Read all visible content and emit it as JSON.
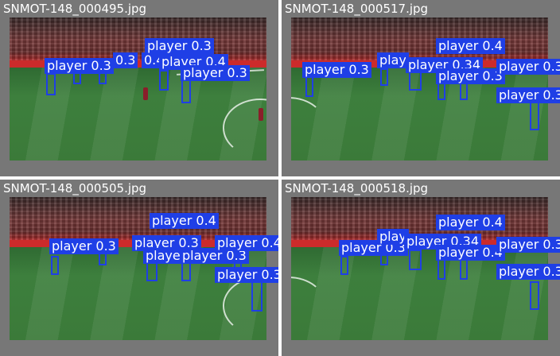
{
  "panels": [
    {
      "title": "SNMOT-148_000495.jpg",
      "labels": [
        "player 0.3",
        "0.3",
        "0.4",
        "player 0.3",
        "player 0.4",
        "player 0.3"
      ]
    },
    {
      "title": "SNMOT-148_000517.jpg",
      "labels": [
        "player 0.4",
        "player 0.3",
        "play",
        "player 0.34",
        "player 0.3",
        "player 0.3",
        "player 0.3"
      ]
    },
    {
      "title": "SNMOT-148_000505.jpg",
      "labels": [
        "player 0.4",
        "player 0.3",
        "player 0.3",
        "player 0.3",
        "player 0.3",
        "player 0.4",
        "player 0.3"
      ]
    },
    {
      "title": "SNMOT-148_000518.jpg",
      "labels": [
        "player 0.4",
        "player 0.3",
        "play",
        "player 0.34",
        "player 0.4",
        "player 0.3",
        "player 0.3"
      ]
    }
  ],
  "colors": {
    "detection_box": "#1f3fe6",
    "panel_background": "#777777"
  }
}
